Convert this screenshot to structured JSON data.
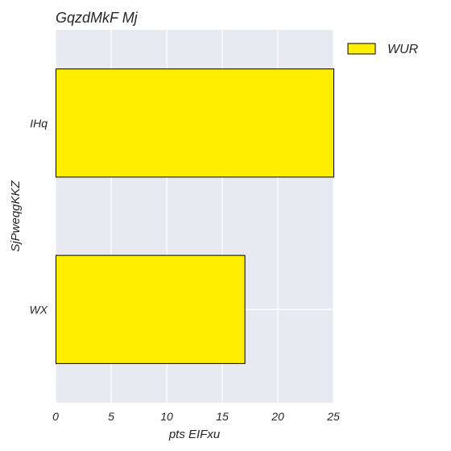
{
  "chart_data": {
    "type": "bar",
    "orientation": "horizontal",
    "title": "GqzdMkF Mj",
    "xlabel": "pts EIFxu",
    "ylabel": "SjPweqgKKZ",
    "categories": [
      "IHq",
      "WX"
    ],
    "series": [
      {
        "name": "WUR",
        "values": [
          25,
          17
        ],
        "color": "#ffee00"
      }
    ],
    "xlim": [
      0,
      25
    ],
    "xticks": [
      0,
      5,
      10,
      15,
      20,
      25
    ],
    "grid": true,
    "legend_position": "outside-top-right",
    "colors": {
      "plot_background": "#e9e9f1",
      "grid": "#ffffff",
      "bar_edge": "#000000"
    }
  }
}
